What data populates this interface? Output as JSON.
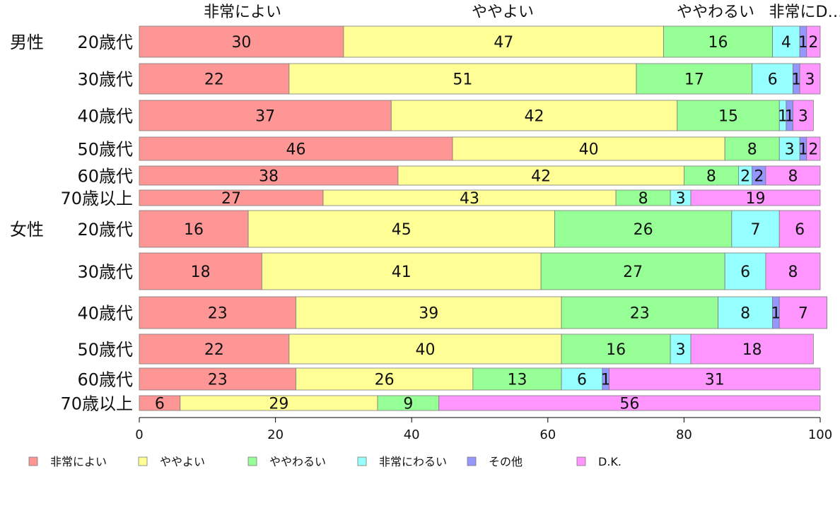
{
  "chart_data": {
    "type": "bar",
    "orientation": "horizontal",
    "stacked": true,
    "top_labels": [
      "非常によい",
      "ややよい",
      "ややわるい",
      "非常にD…"
    ],
    "groups": [
      {
        "label": "男性",
        "rows": [
          {
            "label": "20歳代",
            "values": [
              30,
              47,
              16,
              4,
              1,
              2
            ],
            "labels": [
              "30",
              "47",
              "16",
              "4",
              "1",
              "2"
            ]
          },
          {
            "label": "30歳代",
            "values": [
              22,
              51,
              17,
              6,
              1,
              3
            ],
            "labels": [
              "22",
              "51",
              "17",
              "6",
              "1",
              "3"
            ]
          },
          {
            "label": "40歳代",
            "values": [
              37,
              42,
              15,
              1,
              1,
              3
            ],
            "labels": [
              "37",
              "42",
              "15",
              "1",
              "1",
              "3"
            ]
          },
          {
            "label": "50歳代",
            "values": [
              46,
              40,
              8,
              3,
              1,
              2
            ],
            "labels": [
              "46",
              "40",
              "8",
              "3",
              "1",
              "2"
            ]
          },
          {
            "label": "60歳代",
            "values": [
              38,
              42,
              8,
              2,
              2,
              8
            ],
            "labels": [
              "38",
              "42",
              "8",
              "2",
              "2",
              "8"
            ]
          },
          {
            "label": "70歳以上",
            "values": [
              27,
              43,
              8,
              3,
              0,
              19
            ],
            "labels": [
              "27",
              "43",
              "8",
              "3",
              "",
              "19"
            ]
          }
        ]
      },
      {
        "label": "女性",
        "rows": [
          {
            "label": "20歳代",
            "values": [
              16,
              45,
              26,
              7,
              0,
              6
            ],
            "labels": [
              "16",
              "45",
              "26",
              "7",
              "",
              "6"
            ]
          },
          {
            "label": "30歳代",
            "values": [
              18,
              41,
              27,
              6,
              0,
              8
            ],
            "labels": [
              "18",
              "41",
              "27",
              "6",
              "",
              "8"
            ]
          },
          {
            "label": "40歳代",
            "values": [
              23,
              39,
              23,
              8,
              1,
              7
            ],
            "labels": [
              "23",
              "39",
              "23",
              "8",
              "1",
              "7"
            ]
          },
          {
            "label": "50歳代",
            "values": [
              22,
              40,
              16,
              3,
              0,
              18
            ],
            "labels": [
              "22",
              "40",
              "16",
              "3",
              "",
              "18"
            ]
          },
          {
            "label": "60歳代",
            "values": [
              23,
              26,
              13,
              6,
              1,
              31
            ],
            "labels": [
              "23",
              "26",
              "13",
              "6",
              "1",
              "31"
            ]
          },
          {
            "label": "70歳以上",
            "values": [
              6,
              29,
              9,
              0,
              0,
              56
            ],
            "labels": [
              "6",
              "29",
              "9",
              "",
              "",
              "56"
            ]
          }
        ]
      }
    ],
    "series": [
      {
        "name": "非常によい",
        "color": "#FF9696"
      },
      {
        "name": "ややよい",
        "color": "#FFFF96"
      },
      {
        "name": "ややわるい",
        "color": "#96FF96"
      },
      {
        "name": "非常にわるい",
        "color": "#96FFFF"
      },
      {
        "name": "その他",
        "color": "#9696FF"
      },
      {
        "name": "D.K.",
        "color": "#FF96FF"
      }
    ],
    "x_ticks": [
      "0",
      "20",
      "40",
      "60",
      "80",
      "100"
    ],
    "xlim": [
      0,
      100
    ],
    "grid": false,
    "legend_position": "bottom"
  }
}
